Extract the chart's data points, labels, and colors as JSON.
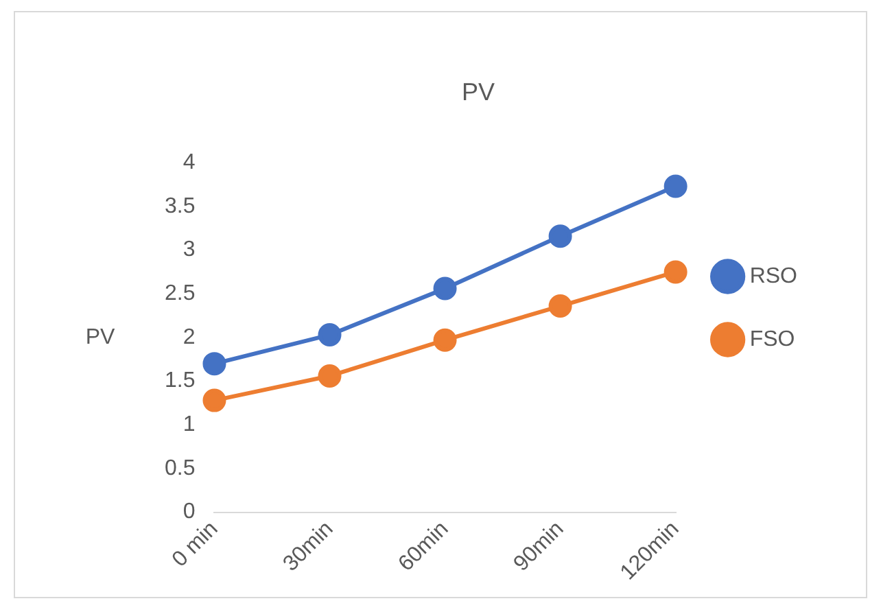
{
  "chart_data": {
    "type": "line",
    "title": "PV",
    "ylabel": "PV",
    "categories": [
      "0 min",
      "30min",
      "60min",
      "90min",
      "120min"
    ],
    "series": [
      {
        "name": "RSO",
        "color": "#4472c4",
        "values": [
          1.7,
          2.03,
          2.56,
          3.16,
          3.73
        ]
      },
      {
        "name": "FSO",
        "color": "#ed7d31",
        "values": [
          1.28,
          1.56,
          1.97,
          2.36,
          2.75
        ]
      }
    ],
    "ylim": [
      0,
      4
    ],
    "yticks": [
      0,
      0.5,
      1,
      1.5,
      2,
      2.5,
      3,
      3.5,
      4
    ],
    "grid": false,
    "legend": "right",
    "marker": "circle",
    "line_style": "solid"
  }
}
